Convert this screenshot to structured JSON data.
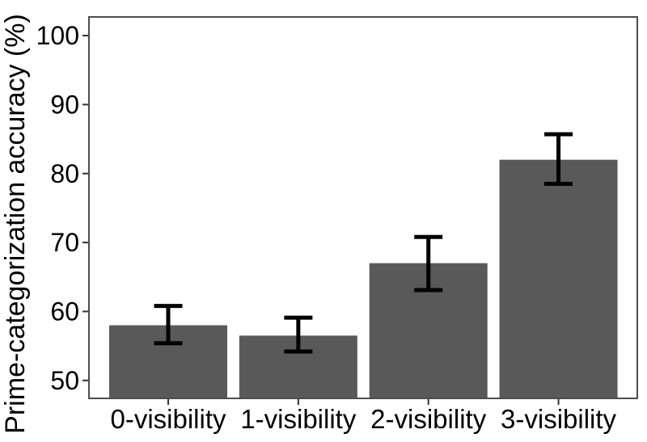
{
  "chart_data": {
    "type": "bar",
    "title": "",
    "xlabel": "",
    "ylabel": "Prime-categorization accuracy (%)",
    "categories": [
      "0-visibility",
      "1-visibility",
      "2-visibility",
      "3-visibility"
    ],
    "values": [
      58.0,
      56.5,
      67.0,
      82.0
    ],
    "error_low": [
      55.4,
      54.2,
      63.1,
      78.5
    ],
    "error_high": [
      60.8,
      59.1,
      70.8,
      85.7
    ],
    "yticks": [
      50,
      60,
      70,
      80,
      90,
      100
    ],
    "ylim": [
      47.4,
      102.7
    ],
    "grid": false,
    "legend_position": "none",
    "bar_color": "#595959",
    "error_color": "#000000",
    "panel_border_color": "#4d4d4d",
    "tick_color": "#333333",
    "text_color": "#000000",
    "background": "#ffffff"
  }
}
